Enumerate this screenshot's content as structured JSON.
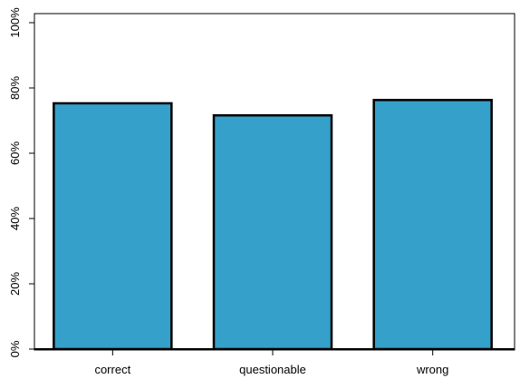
{
  "chart_data": {
    "type": "bar",
    "categories": [
      "correct",
      "questionable",
      "wrong"
    ],
    "values": [
      75.3,
      71.6,
      76.3
    ],
    "ylim": [
      0,
      100
    ],
    "yticks": [
      0,
      20,
      40,
      60,
      80,
      100
    ],
    "ytick_labels": [
      "0%",
      "20%",
      "40%",
      "60%",
      "80%",
      "100%"
    ],
    "title": "",
    "xlabel": "",
    "ylabel": "",
    "bar_color": "#35a0c9",
    "bar_edge_color": "#000000",
    "grid": false
  }
}
